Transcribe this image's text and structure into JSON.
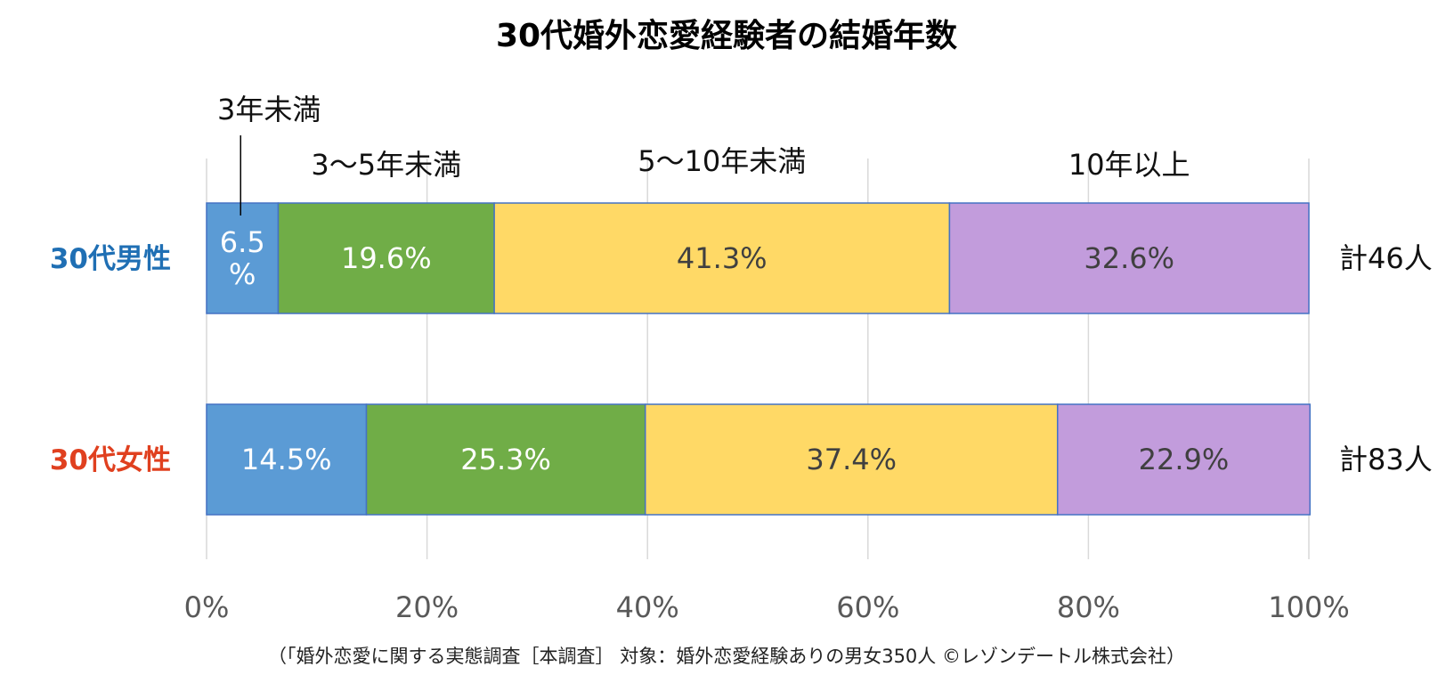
{
  "chart_data": {
    "type": "bar",
    "orientation": "horizontal",
    "stacked": true,
    "title": "30代婚外恋愛経験者の結婚年数",
    "categories": [
      "30代男性",
      "30代女性"
    ],
    "category_colors": [
      "#1F6FB4",
      "#E0401F"
    ],
    "series": [
      {
        "name": "3年未満",
        "color": "#5B9BD5",
        "label_color": "#FFFFFF",
        "values": [
          6.5,
          14.5
        ],
        "labels": [
          "6.5\n%",
          "14.5%"
        ]
      },
      {
        "name": "3～5年未満",
        "color": "#70AD47",
        "label_color": "#FFFFFF",
        "values": [
          19.6,
          25.3
        ],
        "labels": [
          "19.6%",
          "25.3%"
        ]
      },
      {
        "name": "5～10年未満",
        "color": "#FFD966",
        "label_color": "#404040",
        "values": [
          41.3,
          37.4
        ],
        "labels": [
          "41.3%",
          "37.4%"
        ]
      },
      {
        "name": "10年以上",
        "color": "#C29CDC",
        "label_color": "#404040",
        "values": [
          32.6,
          22.9
        ],
        "labels": [
          "32.6%",
          "22.9%"
        ]
      }
    ],
    "totals": [
      "計46人",
      "計83人"
    ],
    "xlim": [
      0,
      100
    ],
    "xticks": [
      "0%",
      "20%",
      "40%",
      "60%",
      "80%",
      "100%"
    ],
    "grid": true,
    "source": "（「婚外恋愛に関する実態調査［本調査］ 対象：婚外恋愛経験ありの男女350人 ©レゾンデートル株式会社）"
  }
}
